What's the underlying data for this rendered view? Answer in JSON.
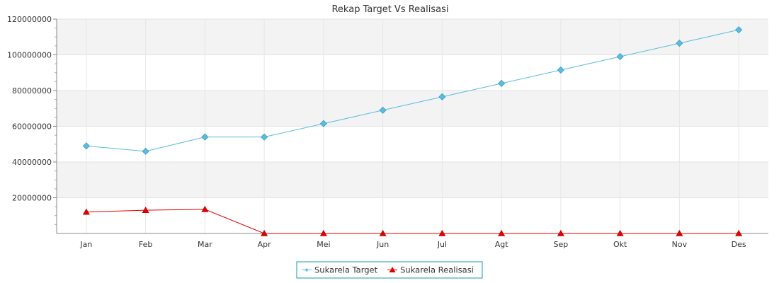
{
  "chart_data": {
    "type": "line",
    "title": "Rekap Target Vs Realisasi",
    "xlabel": "",
    "ylabel": "",
    "categories": [
      "Jan",
      "Feb",
      "Mar",
      "Apr",
      "Mei",
      "Jun",
      "Jul",
      "Agt",
      "Sep",
      "Okt",
      "Nov",
      "Des"
    ],
    "ylim": [
      0,
      120000000
    ],
    "yticks": [
      20000000,
      40000000,
      60000000,
      80000000,
      100000000,
      120000000
    ],
    "ytick_labels": [
      "20000000",
      "40000000",
      "60000000",
      "80000000",
      "100000000",
      "120000000"
    ],
    "grid": true,
    "legend_position": "bottom-center",
    "series": [
      {
        "name": "Sukarela Target",
        "color": "#5bbcdf",
        "marker": "diamond",
        "values": [
          49000000,
          46000000,
          54000000,
          54000000,
          61500000,
          69000000,
          76500000,
          84000000,
          91500000,
          99000000,
          106500000,
          114000000
        ]
      },
      {
        "name": "Sukarela Realisasi",
        "color": "#e30000",
        "marker": "triangle",
        "values": [
          12000000,
          13000000,
          13500000,
          0,
          0,
          0,
          0,
          0,
          0,
          0,
          0,
          0
        ]
      }
    ]
  }
}
